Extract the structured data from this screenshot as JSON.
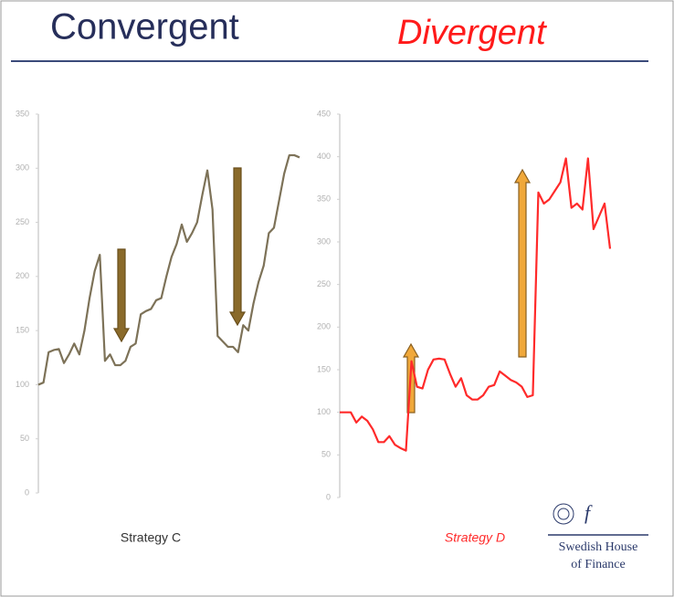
{
  "title_left": "Convergent",
  "title_right": "Divergent",
  "chart_data": [
    {
      "type": "line",
      "xlabel": "Strategy C",
      "color": "#7d7258",
      "ylim": [
        0,
        350
      ],
      "yticks": [
        0,
        50,
        100,
        150,
        200,
        250,
        300,
        350
      ],
      "values": [
        100,
        102,
        130,
        132,
        133,
        120,
        128,
        138,
        128,
        150,
        180,
        205,
        220,
        122,
        128,
        118,
        118,
        122,
        135,
        138,
        165,
        168,
        170,
        178,
        180,
        200,
        218,
        230,
        248,
        232,
        240,
        250,
        275,
        298,
        262,
        145,
        140,
        135,
        135,
        130,
        155,
        150,
        175,
        195,
        210,
        240,
        245,
        270,
        295,
        312,
        312,
        310
      ]
    },
    {
      "type": "line",
      "xlabel": "Strategy D",
      "color": "#ff2a2a",
      "ylim": [
        0,
        450
      ],
      "yticks": [
        0,
        50,
        100,
        150,
        200,
        250,
        300,
        350,
        400,
        450
      ],
      "values": [
        100,
        100,
        100,
        88,
        95,
        90,
        80,
        65,
        65,
        72,
        62,
        58,
        55,
        160,
        130,
        128,
        150,
        162,
        163,
        162,
        145,
        130,
        140,
        120,
        115,
        115,
        120,
        130,
        132,
        148,
        143,
        138,
        135,
        130,
        118,
        120,
        358,
        345,
        350,
        360,
        370,
        398,
        340,
        345,
        338,
        398,
        315,
        330,
        345,
        292
      ]
    }
  ],
  "logo": {
    "line1": "Swedish House",
    "line2": "of Finance"
  }
}
